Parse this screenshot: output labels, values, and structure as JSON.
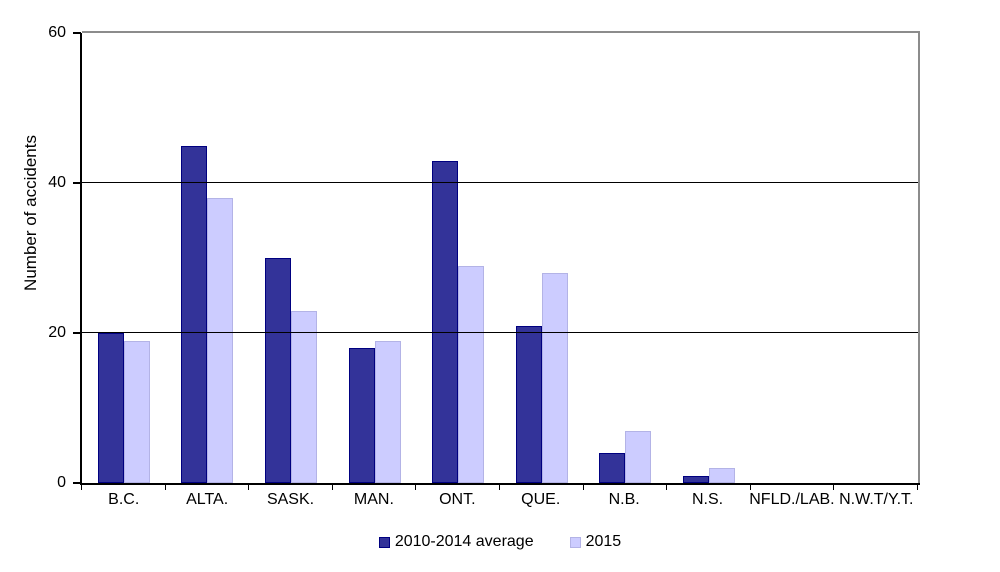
{
  "chart_data": {
    "type": "bar",
    "title": "",
    "ylabel": "Number of accidents",
    "xlabel": "",
    "ylim": [
      0,
      60
    ],
    "yticks": [
      0,
      20,
      40,
      60
    ],
    "grid": "horizontal",
    "legend_position": "bottom-center",
    "plot_border_color": "#8c8c8c",
    "axis_color": "#000000",
    "categories": [
      "B.C.",
      "ALTA.",
      "SASK.",
      "MAN.",
      "ONT.",
      "QUE.",
      "N.B.",
      "N.S.",
      "NFLD./LAB.",
      "N.W.T/Y.T."
    ],
    "series": [
      {
        "name": "2010-2014 average",
        "color": "#333399",
        "border": "#000080",
        "values": [
          20,
          45,
          30,
          18,
          43,
          21,
          4,
          1,
          0,
          0
        ]
      },
      {
        "name": "2015",
        "color": "#ccccff",
        "border": "#b3b3e6",
        "values": [
          19,
          38,
          23,
          19,
          29,
          28,
          7,
          2,
          0,
          0
        ]
      }
    ]
  }
}
